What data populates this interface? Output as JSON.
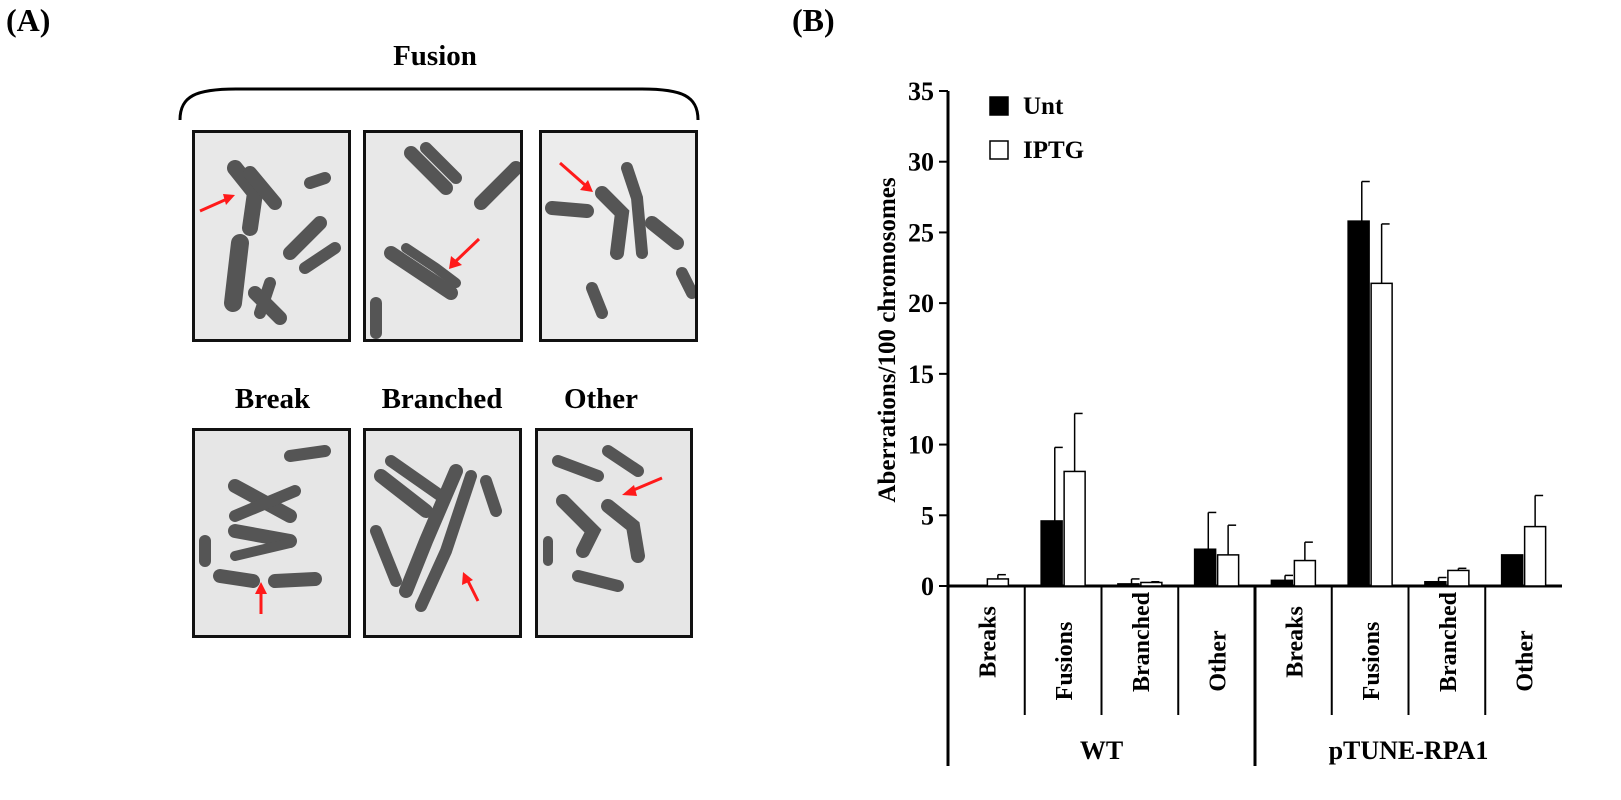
{
  "panels": {
    "a_label": "(A)",
    "b_label": "(B)",
    "fusion_title": "Fusion",
    "break_title": "Break",
    "branched_title": "Branched",
    "other_title": "Other"
  },
  "colors": {
    "arrow": "#ff1a1a",
    "chromosome": "#4a4a4a",
    "background": "#ebebeb"
  },
  "chart_data": {
    "type": "bar",
    "ylabel": "Aberrations/100 chromosomes",
    "ylim": [
      0,
      35
    ],
    "yticks": [
      0,
      5,
      10,
      15,
      20,
      25,
      30,
      35
    ],
    "legend_position": "top-left",
    "groups": [
      {
        "name": "WT",
        "categories": [
          "Breaks",
          "Fusions",
          "Branched",
          "Other"
        ]
      },
      {
        "name": "pTUNE-RPA1",
        "categories": [
          "Breaks",
          "Fusions",
          "Branched",
          "Other"
        ]
      }
    ],
    "series": [
      {
        "name": "Unt",
        "color": "#000000",
        "values": [
          0.0,
          4.6,
          0.15,
          2.6,
          0.4,
          25.8,
          0.3,
          2.2
        ],
        "errors": [
          0.0,
          5.2,
          0.35,
          2.6,
          0.35,
          2.8,
          0.3,
          0.0
        ]
      },
      {
        "name": "IPTG",
        "color": "#ffffff",
        "values": [
          0.5,
          8.1,
          0.25,
          2.2,
          1.8,
          21.4,
          1.1,
          4.2
        ],
        "errors": [
          0.3,
          4.1,
          0.05,
          2.1,
          1.3,
          4.2,
          0.15,
          2.2
        ]
      }
    ]
  }
}
